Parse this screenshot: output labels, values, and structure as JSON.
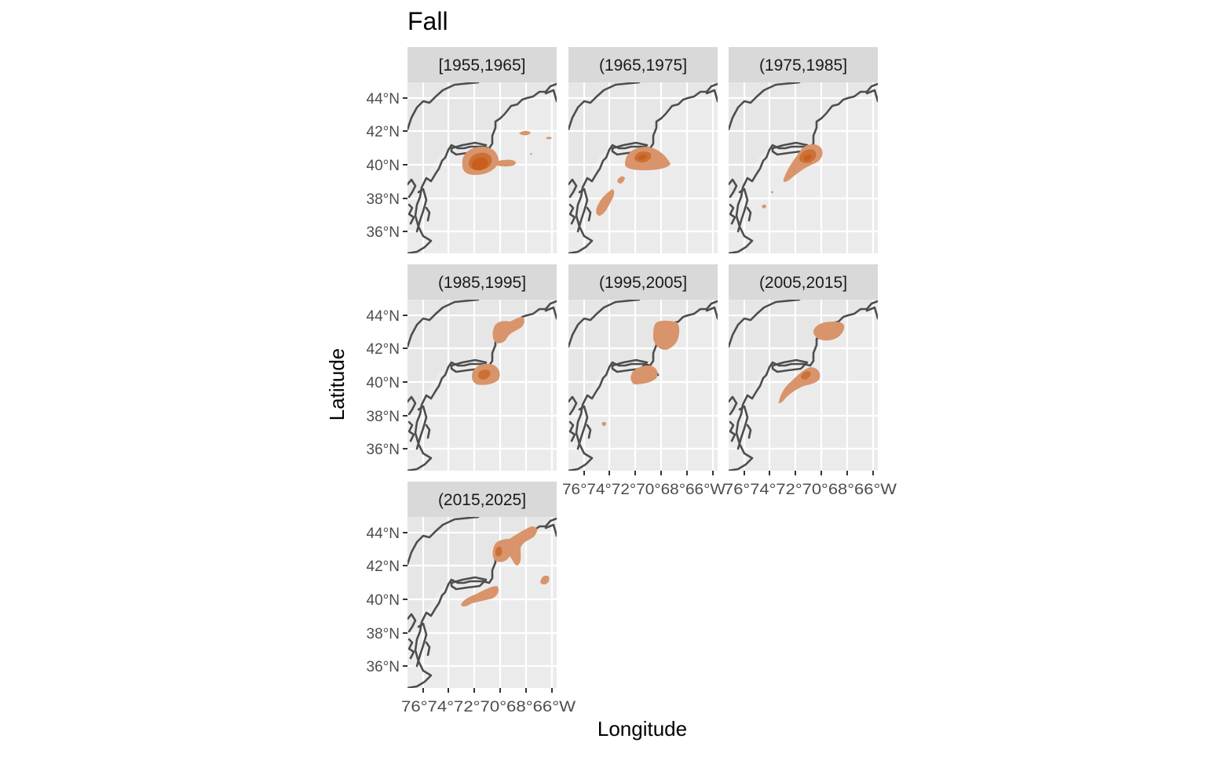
{
  "page": {
    "title": "Fall"
  },
  "axes": {
    "x_title": "Longitude",
    "y_title": "Latitude",
    "y_ticks": [
      "44°N",
      "42°N",
      "40°N",
      "38°N",
      "36°N"
    ],
    "x_ticks": [
      "76°W",
      "74°W",
      "72°W",
      "70°W",
      "68°W",
      "66°W"
    ],
    "x_tick_text_left": "76°74°72°70°68°66°W",
    "x_tick_text_right": "76°74°72°70°68°66°W",
    "x_tick_text_bottom": "76°74°72°70°68°66°W"
  },
  "colors": {
    "panel_bg": "#ebebeb",
    "land": "#e6e6e6",
    "strip_bg": "#d9d9d9",
    "coast": "#4d4d4d",
    "density_low": "#d9946b",
    "density_mid": "#cc7035",
    "density_high": "#c85f1f"
  },
  "panels": [
    {
      "label": "[1955,1965]"
    },
    {
      "label": "(1965,1975]"
    },
    {
      "label": "(1975,1985]"
    },
    {
      "label": "(1985,1995]"
    },
    {
      "label": "(1995,2005]"
    },
    {
      "label": "(2005,2015]"
    },
    {
      "label": "(2015,2025]"
    }
  ]
}
